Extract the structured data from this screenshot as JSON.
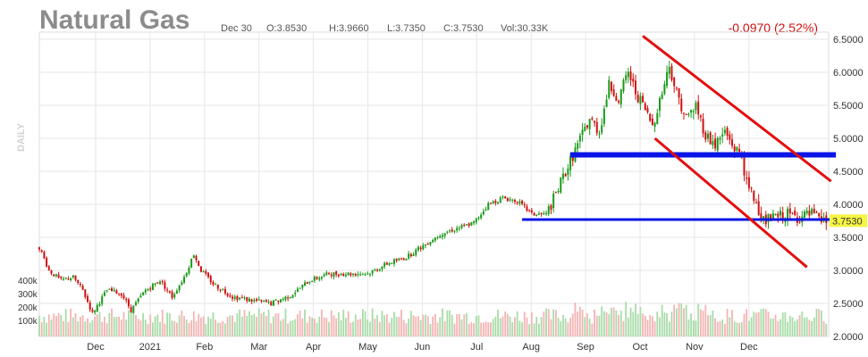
{
  "header": {
    "title": "Natural Gas",
    "date": "Dec 30",
    "open": "O:3.8530",
    "high": "H:3.9660",
    "low": "L:3.7350",
    "close": "C:3.7530",
    "volume": "Vol:30.33K",
    "change": "-0.0970 (2.52%)",
    "period_label": "DAILY"
  },
  "colors": {
    "up": "#1a9a1a",
    "down": "#d01010",
    "vol_up": "#a8dca8",
    "vol_down": "#f4b4b4",
    "support_line": "#0a14e6",
    "channel_line": "#e60d0d",
    "grid": "#e6e6e6",
    "last_price_bg": "#f5f542"
  },
  "chart_data": {
    "type": "candlestick",
    "ylim": [
      2.0,
      6.5
    ],
    "y_ticks": [
      "6.5000",
      "6.0000",
      "5.5000",
      "5.0000",
      "4.5000",
      "4.0000",
      "3.5000",
      "3.0000",
      "2.5000",
      "2.0000"
    ],
    "x_ticks": [
      "Dec",
      "2021",
      "Feb",
      "Mar",
      "Apr",
      "May",
      "Jun",
      "Jul",
      "Aug",
      "Sep",
      "Oct",
      "Nov",
      "Dec"
    ],
    "volume_ticks": [
      "400k",
      "300k",
      "200k",
      "100k"
    ],
    "last_price": "3.7530",
    "price_path": [
      [
        0,
        3.35
      ],
      [
        4,
        3.0
      ],
      [
        9,
        2.85
      ],
      [
        14,
        2.9
      ],
      [
        18,
        2.7
      ],
      [
        22,
        2.35
      ],
      [
        28,
        2.7
      ],
      [
        34,
        2.65
      ],
      [
        38,
        2.4
      ],
      [
        44,
        2.7
      ],
      [
        50,
        2.85
      ],
      [
        55,
        2.6
      ],
      [
        60,
        2.9
      ],
      [
        64,
        3.25
      ],
      [
        67,
        3.0
      ],
      [
        72,
        2.8
      ],
      [
        80,
        2.6
      ],
      [
        88,
        2.55
      ],
      [
        96,
        2.5
      ],
      [
        104,
        2.62
      ],
      [
        112,
        2.85
      ],
      [
        120,
        2.95
      ],
      [
        128,
        2.95
      ],
      [
        136,
        2.95
      ],
      [
        144,
        3.1
      ],
      [
        152,
        3.2
      ],
      [
        158,
        3.35
      ],
      [
        166,
        3.55
      ],
      [
        174,
        3.65
      ],
      [
        180,
        3.72
      ],
      [
        186,
        4.0
      ],
      [
        192,
        4.1
      ],
      [
        198,
        4.05
      ],
      [
        204,
        3.85
      ],
      [
        210,
        3.85
      ],
      [
        214,
        4.15
      ],
      [
        218,
        4.5
      ],
      [
        223,
        4.9
      ],
      [
        228,
        5.3
      ],
      [
        232,
        5.1
      ],
      [
        236,
        5.8
      ],
      [
        240,
        5.6
      ],
      [
        244,
        6.0
      ],
      [
        247,
        5.7
      ],
      [
        250,
        5.5
      ],
      [
        254,
        5.2
      ],
      [
        258,
        5.7
      ],
      [
        261,
        6.1
      ],
      [
        264,
        5.7
      ],
      [
        268,
        5.3
      ],
      [
        272,
        5.5
      ],
      [
        276,
        5.05
      ],
      [
        280,
        4.9
      ],
      [
        284,
        5.1
      ],
      [
        288,
        4.85
      ],
      [
        291,
        4.75
      ],
      [
        293,
        4.3
      ],
      [
        296,
        4.1
      ],
      [
        300,
        3.75
      ],
      [
        305,
        3.8
      ],
      [
        310,
        3.85
      ],
      [
        315,
        3.8
      ],
      [
        320,
        3.85
      ],
      [
        323,
        3.75
      ]
    ],
    "annotations": [
      {
        "type": "horizontal-line",
        "color": "support_line",
        "from_day": 220,
        "to_day": 330,
        "value": 4.75
      },
      {
        "type": "horizontal-line",
        "color": "support_line",
        "from_day": 200,
        "to_day": 330,
        "value": 3.77
      },
      {
        "type": "trend-line",
        "color": "channel_line",
        "from": [
          250,
          6.55
        ],
        "to": [
          328,
          4.35
        ]
      },
      {
        "type": "trend-line",
        "color": "channel_line",
        "from": [
          255,
          5.0
        ],
        "to": [
          318,
          3.05
        ]
      }
    ]
  }
}
